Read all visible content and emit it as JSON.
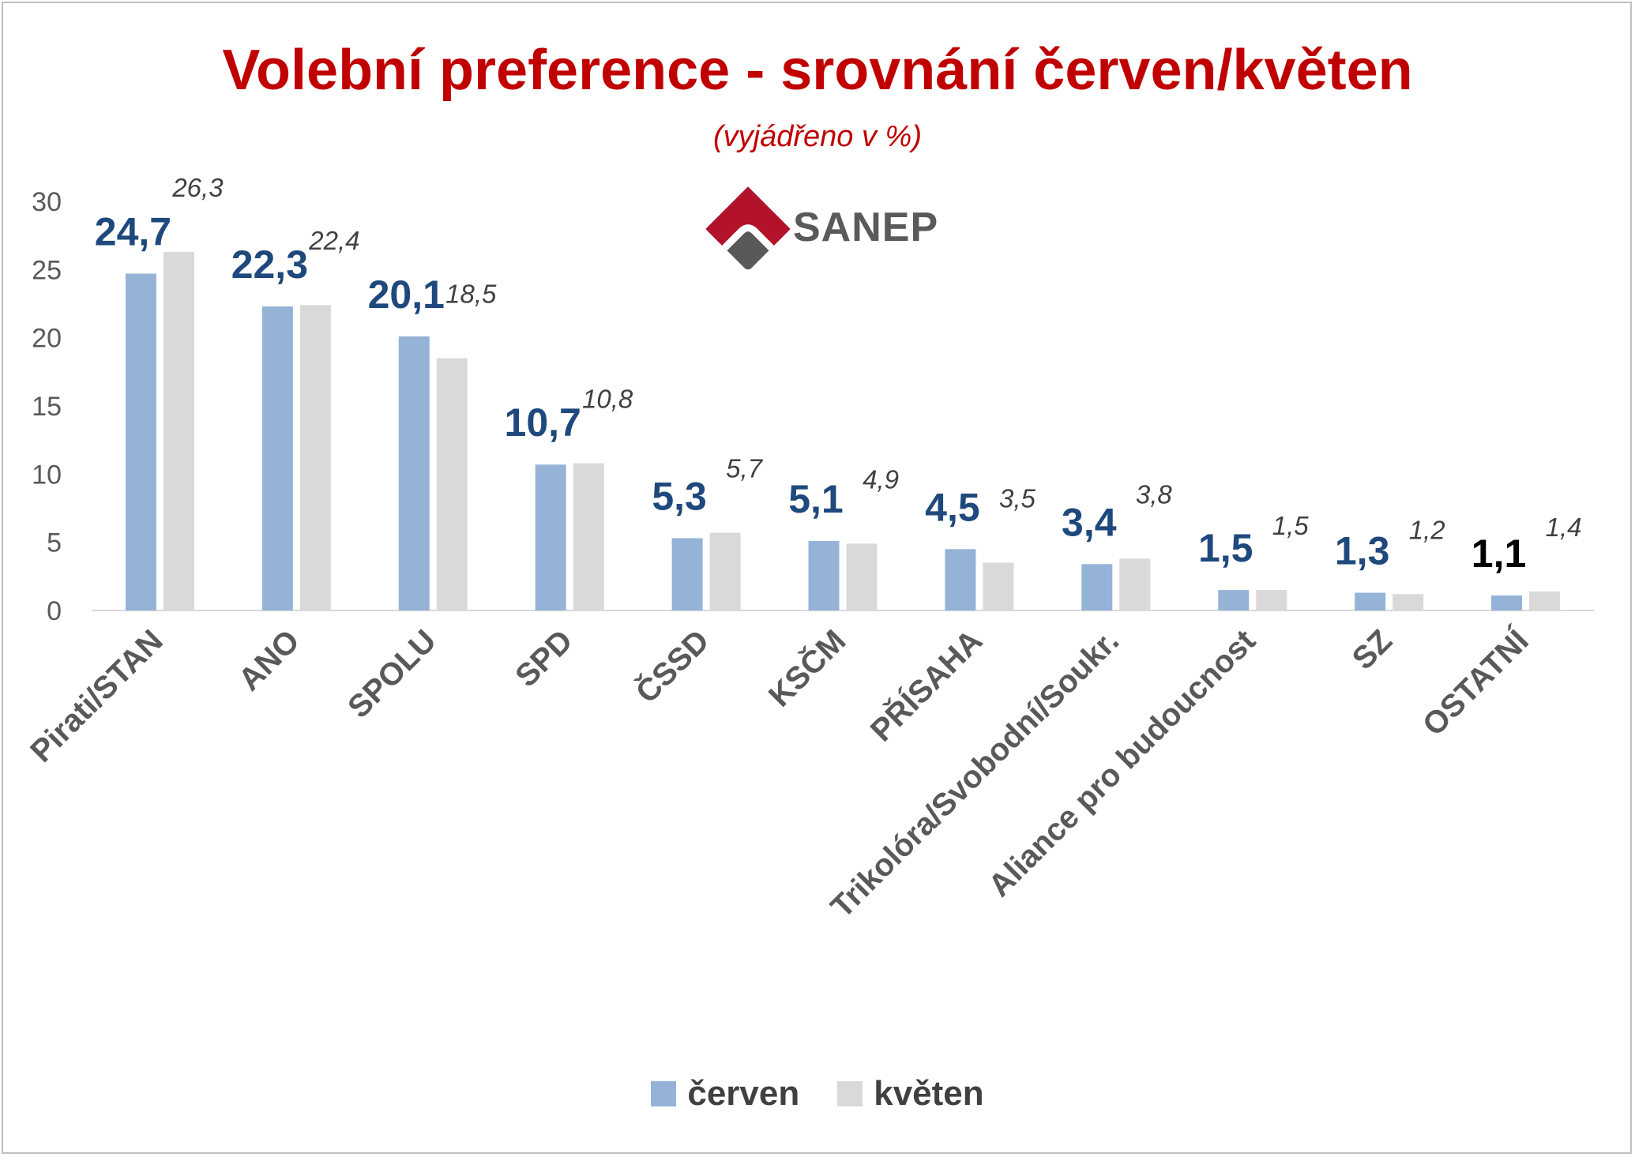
{
  "header": {
    "title": "Volební preference - srovnání červen/květen",
    "subtitle": "(vyjádřeno v %)"
  },
  "logo": {
    "text": "SANEP",
    "icon": "sanep-diamond-logo-icon",
    "colors": {
      "red": "#b3122b",
      "gray": "#595959"
    }
  },
  "legend": {
    "items": [
      {
        "label": "červen",
        "color": "#95b3d7"
      },
      {
        "label": "květen",
        "color": "#d9d9d9"
      }
    ]
  },
  "chart_data": {
    "type": "bar",
    "categories": [
      "Pirati/STAN",
      "ANO",
      "SPOLU",
      "SPD",
      "ČSSD",
      "KSČM",
      "PŘÍSAHA",
      "Trikolóra/Svobodní/Soukr.",
      "Aliance pro budoucnost",
      "SZ",
      "OSTATNÍ"
    ],
    "series": [
      {
        "name": "červen",
        "color": "#95b3d7",
        "label_color": "#1f497d",
        "values": [
          24.7,
          22.3,
          20.1,
          10.7,
          5.3,
          5.1,
          4.5,
          3.4,
          1.5,
          1.3,
          1.1
        ],
        "labels": [
          "24,7",
          "22,3",
          "20,1",
          "10,7",
          "5,3",
          "5,1",
          "4,5",
          "3,4",
          "1,5",
          "1,3",
          "1,1"
        ]
      },
      {
        "name": "květen",
        "color": "#d9d9d9",
        "label_color": "#404040",
        "values": [
          26.3,
          22.4,
          18.5,
          10.8,
          5.7,
          4.9,
          3.5,
          3.8,
          1.5,
          1.2,
          1.4
        ],
        "labels": [
          "26,3",
          "22,4",
          "18,5",
          "10,8",
          "5,7",
          "4,9",
          "3,5",
          "3,8",
          "1,5",
          "1,2",
          "1,4"
        ]
      }
    ],
    "last_label_color": "#000000",
    "ylim": [
      0,
      30
    ],
    "yticks": [
      "0",
      "5",
      "10",
      "15",
      "20",
      "25",
      "30"
    ],
    "grid": false,
    "legend_position": "bottom"
  }
}
